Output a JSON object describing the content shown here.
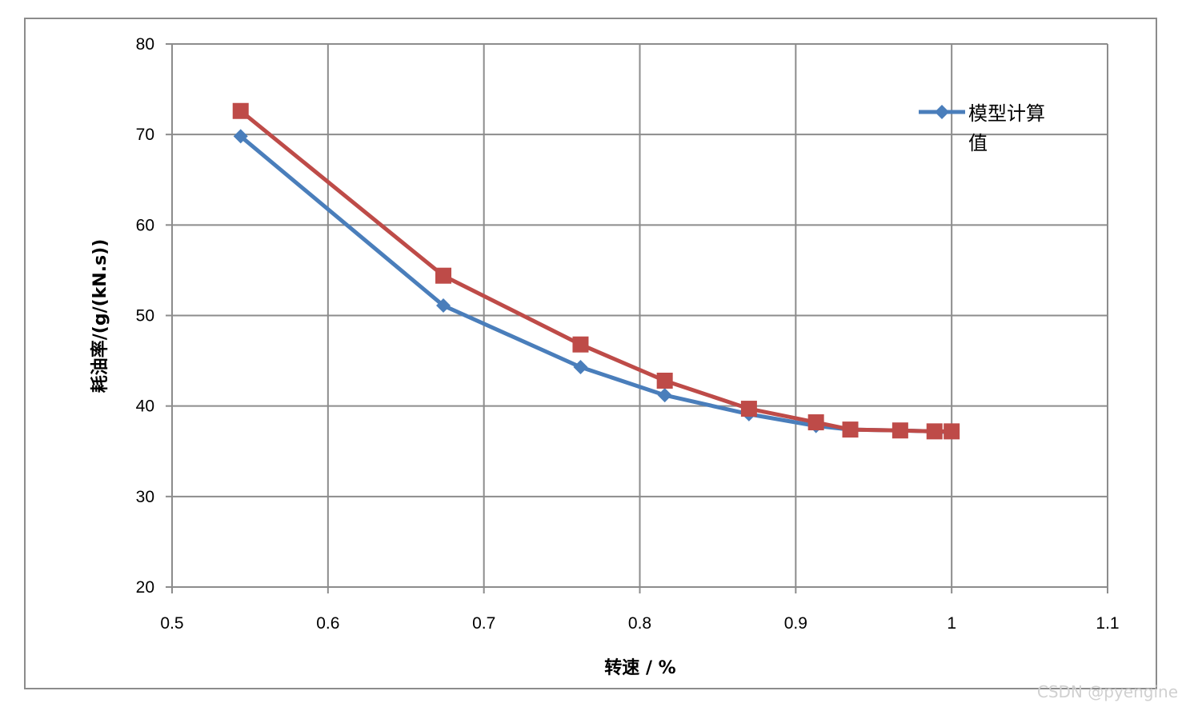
{
  "watermark": "CSDN @pyengine",
  "chart_data": {
    "type": "line",
    "xlabel": "转速 / %",
    "ylabel": "耗油率/(g/(kN.s))",
    "xlim": [
      0.5,
      1.1
    ],
    "ylim": [
      20,
      80
    ],
    "x_ticks": [
      "0.5",
      "0.6",
      "0.7",
      "0.8",
      "0.9",
      "1",
      "1.1"
    ],
    "y_ticks": [
      "20",
      "30",
      "40",
      "50",
      "60",
      "70",
      "80"
    ],
    "grid": true,
    "legend_position": "top-right",
    "series": [
      {
        "name": "模型计算值",
        "color": "#4a7ebb",
        "marker": "diamond",
        "x": [
          0.544,
          0.674,
          0.762,
          0.816,
          0.87,
          0.913,
          0.935,
          0.967,
          0.989,
          1.0
        ],
        "y": [
          69.8,
          51.1,
          44.3,
          41.2,
          39.1,
          37.8,
          37.4,
          37.3,
          37.2,
          37.1
        ]
      },
      {
        "color": "#be4b48",
        "marker": "square",
        "x": [
          0.544,
          0.674,
          0.762,
          0.816,
          0.87,
          0.913,
          0.935,
          0.967,
          0.989,
          1.0
        ],
        "y": [
          72.6,
          54.4,
          46.8,
          42.8,
          39.7,
          38.2,
          37.4,
          37.3,
          37.2,
          37.2
        ]
      }
    ]
  }
}
